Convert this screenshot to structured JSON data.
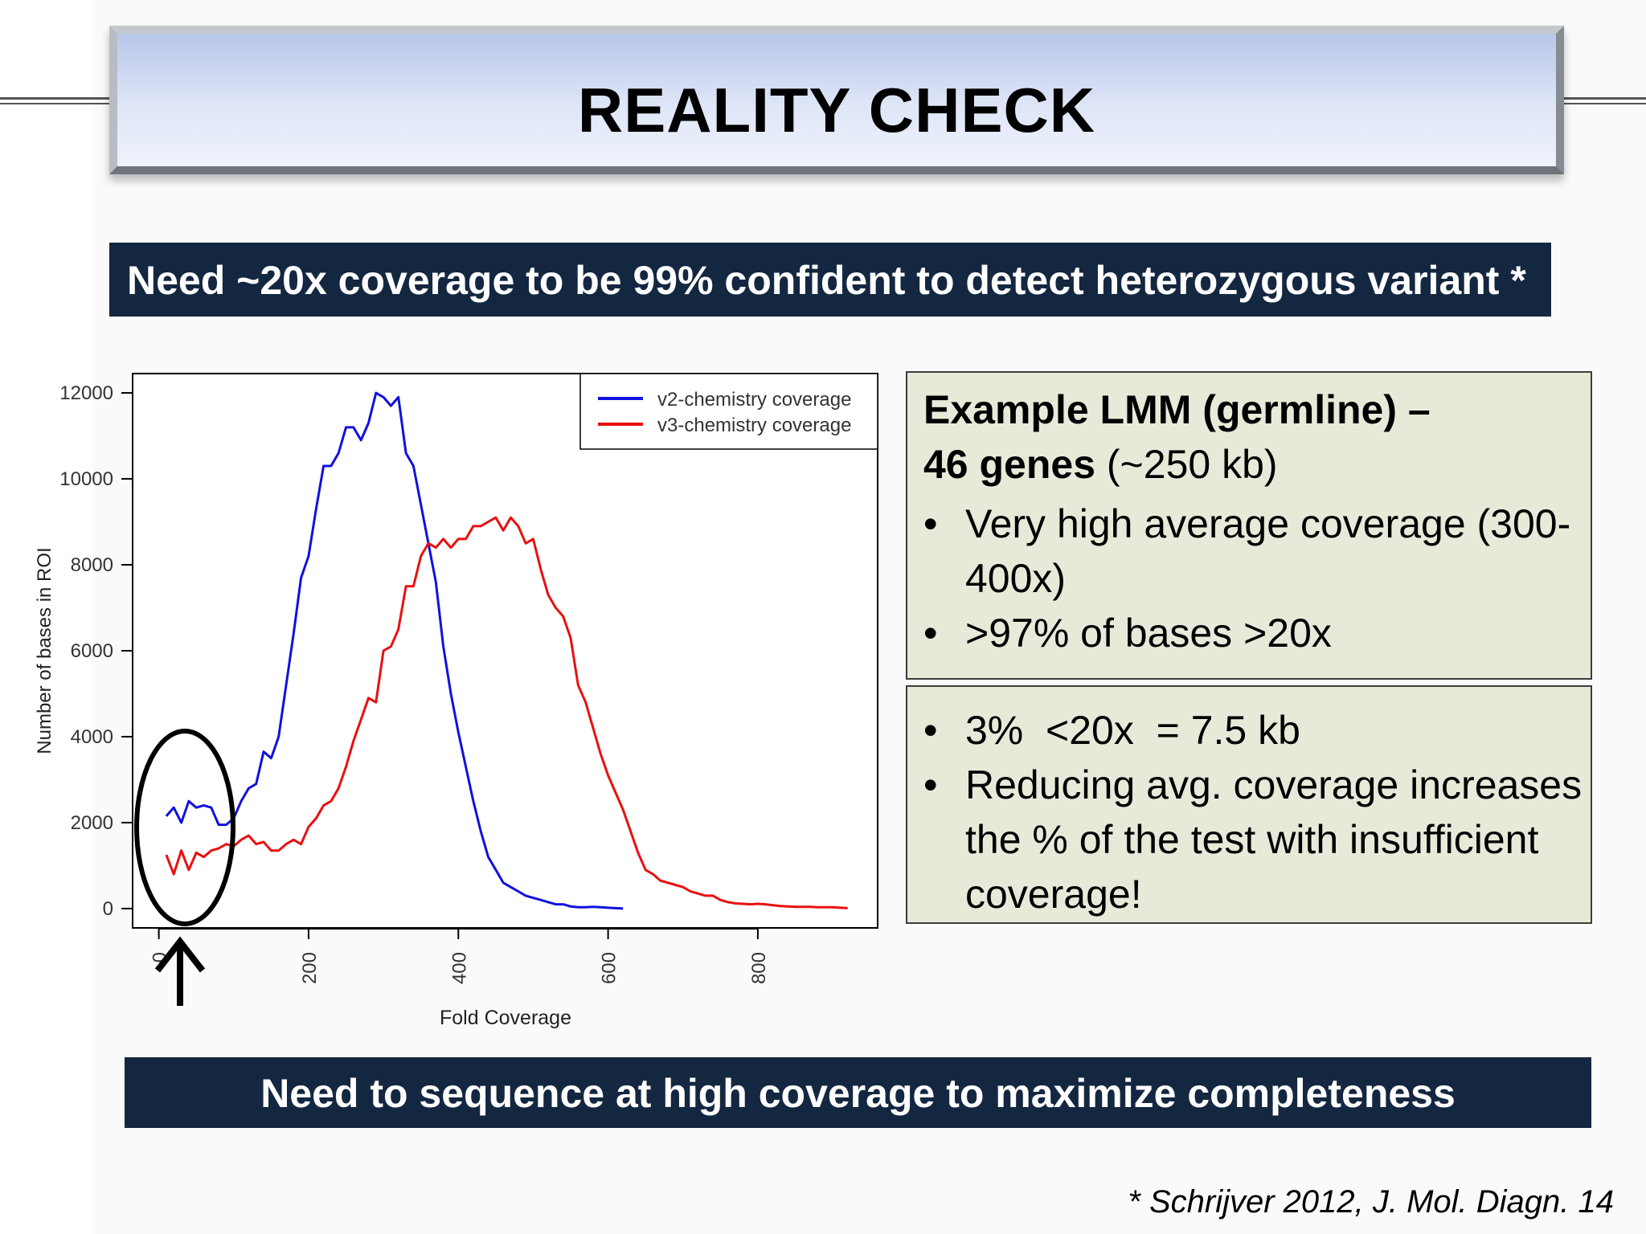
{
  "title": "REALITY CHECK",
  "top_banner": "Need ~20x coverage to be 99% confident to detect heterozygous variant *",
  "bottom_banner": "Need to sequence at high coverage to maximize completeness",
  "box1": {
    "heading": "Example LMM (germline) –",
    "sub_bold": "46 genes",
    "sub_rest": " (~250 kb)",
    "bullets": [
      "Very high average coverage (300-400x)",
      ">97% of bases >20x"
    ]
  },
  "box2": {
    "bullets": [
      "3%  <20x  = 7.5 kb",
      "Reducing avg. coverage increases the % of the test with insufficient coverage!"
    ]
  },
  "citation": "* Schrijver 2012, J. Mol. Diagn. 14",
  "chart_data": {
    "type": "line",
    "xlabel": "Fold Coverage",
    "ylabel": "Number of bases in ROI",
    "xlim": [
      -35,
      960
    ],
    "ylim": [
      -450,
      12450
    ],
    "x_ticks": [
      0,
      200,
      400,
      600,
      800
    ],
    "y_ticks": [
      0,
      2000,
      4000,
      6000,
      8000,
      10000,
      12000
    ],
    "legend_position": "top-right",
    "series": [
      {
        "name": "v2-chemistry coverage",
        "color": "#1010e0",
        "x": [
          10,
          20,
          30,
          40,
          50,
          60,
          70,
          80,
          90,
          100,
          110,
          120,
          130,
          140,
          150,
          160,
          170,
          180,
          190,
          200,
          210,
          220,
          230,
          240,
          250,
          260,
          270,
          280,
          290,
          300,
          310,
          320,
          330,
          340,
          350,
          360,
          370,
          380,
          390,
          400,
          410,
          420,
          430,
          440,
          450,
          460,
          470,
          480,
          490,
          500,
          510,
          520,
          530,
          540,
          550,
          560,
          570,
          580,
          590,
          600,
          610,
          620
        ],
        "y": [
          2150,
          2350,
          2000,
          2500,
          2350,
          2400,
          2350,
          1950,
          1950,
          2100,
          2500,
          2800,
          2900,
          3650,
          3500,
          4000,
          5200,
          6400,
          7700,
          8200,
          9300,
          10300,
          10300,
          10600,
          11200,
          11200,
          10900,
          11300,
          12000,
          11900,
          11700,
          11900,
          10600,
          10300,
          9400,
          8500,
          7600,
          6100,
          5000,
          4100,
          3300,
          2500,
          1800,
          1200,
          900,
          600,
          500,
          400,
          300,
          250,
          200,
          150,
          100,
          100,
          50,
          30,
          30,
          40,
          30,
          20,
          10,
          0
        ]
      },
      {
        "name": "v3-chemistry coverage",
        "color": "#e81010",
        "x": [
          10,
          20,
          30,
          40,
          50,
          60,
          70,
          80,
          90,
          100,
          110,
          120,
          130,
          140,
          150,
          160,
          170,
          180,
          190,
          200,
          210,
          220,
          230,
          240,
          250,
          260,
          270,
          280,
          290,
          300,
          310,
          320,
          330,
          340,
          350,
          360,
          370,
          380,
          390,
          400,
          410,
          420,
          430,
          440,
          450,
          460,
          470,
          480,
          490,
          500,
          510,
          520,
          530,
          540,
          550,
          560,
          570,
          580,
          590,
          600,
          610,
          620,
          630,
          640,
          650,
          660,
          670,
          680,
          690,
          700,
          710,
          720,
          730,
          740,
          750,
          760,
          770,
          780,
          790,
          800,
          810,
          820,
          830,
          840,
          850,
          860,
          870,
          880,
          890,
          900,
          910,
          920
        ],
        "y": [
          1250,
          800,
          1350,
          900,
          1300,
          1200,
          1350,
          1400,
          1500,
          1450,
          1600,
          1700,
          1500,
          1550,
          1350,
          1350,
          1500,
          1600,
          1500,
          1900,
          2100,
          2400,
          2500,
          2800,
          3300,
          3900,
          4400,
          4900,
          4800,
          6000,
          6100,
          6500,
          7500,
          7500,
          8200,
          8500,
          8400,
          8600,
          8400,
          8600,
          8600,
          8900,
          8900,
          9000,
          9100,
          8800,
          9100,
          8900,
          8500,
          8600,
          7900,
          7300,
          7000,
          6800,
          6300,
          5200,
          4800,
          4200,
          3600,
          3100,
          2700,
          2300,
          1800,
          1300,
          900,
          800,
          650,
          600,
          550,
          500,
          400,
          350,
          300,
          300,
          200,
          150,
          120,
          110,
          100,
          110,
          100,
          80,
          60,
          50,
          40,
          40,
          40,
          30,
          30,
          30,
          20,
          10
        ]
      }
    ]
  }
}
